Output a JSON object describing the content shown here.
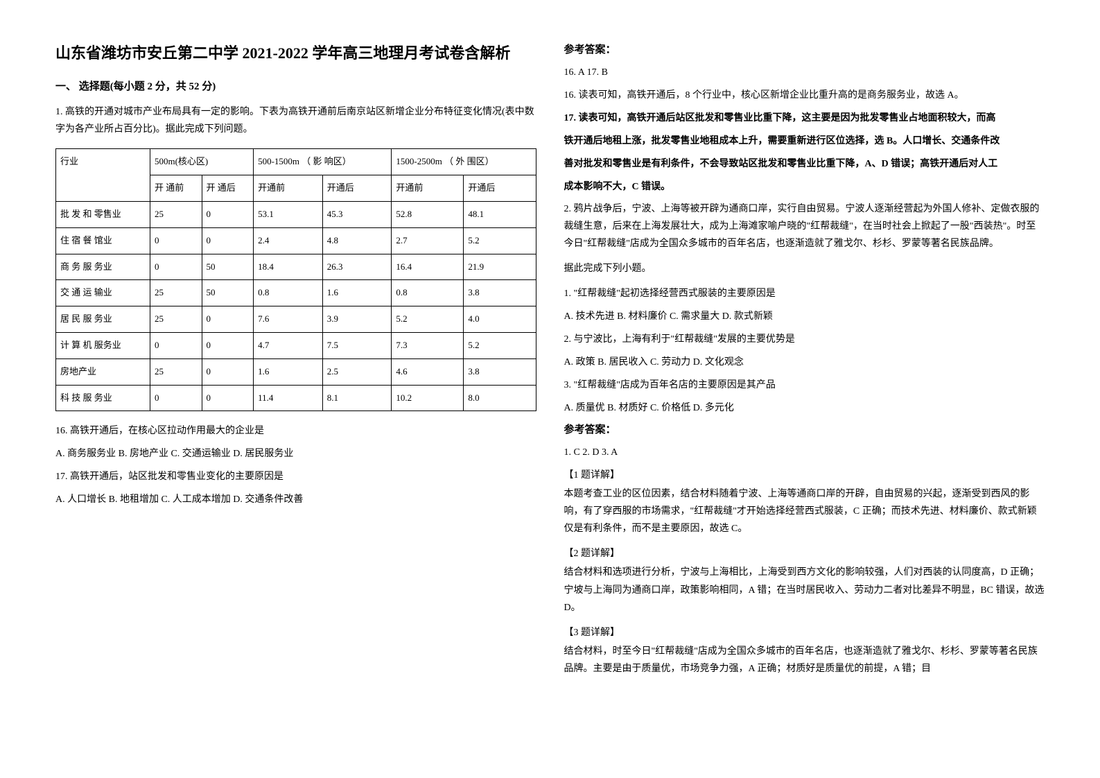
{
  "title": "山东省潍坊市安丘第二中学 2021-2022 学年高三地理月考试卷含解析",
  "section1_heading": "一、 选择题(每小题 2 分，共 52 分)",
  "q1_intro": "1. 高铁的开通对城市产业布局具有一定的影响。下表为高铁开通前后南京站区新增企业分布特征变化情况(表中数字为各产业所占百分比)。据此完成下列问题。",
  "table": {
    "header_row1": [
      "行业",
      "500m(核心区)",
      "500-1500m （ 影 响区）",
      "1500-2500m （ 外 围区）"
    ],
    "header_row2": [
      "开 通前",
      "开 通后",
      "开通前",
      "开通后",
      "开通前",
      "开通后"
    ],
    "rows": [
      [
        "批 发 和 零售业",
        "25",
        "0",
        "53.1",
        "45.3",
        "52.8",
        "48.1"
      ],
      [
        "住 宿 餐 馆业",
        "0",
        "0",
        "2.4",
        "4.8",
        "2.7",
        "5.2"
      ],
      [
        "商 务 服 务业",
        "0",
        "50",
        "18.4",
        "26.3",
        "16.4",
        "21.9"
      ],
      [
        "交 通 运 输业",
        "25",
        "50",
        "0.8",
        "1.6",
        "0.8",
        "3.8"
      ],
      [
        "居 民 服 务业",
        "25",
        "0",
        "7.6",
        "3.9",
        "5.2",
        "4.0"
      ],
      [
        "计 算 机 服务业",
        "0",
        "0",
        "4.7",
        "7.5",
        "7.3",
        "5.2"
      ],
      [
        "房地产业",
        "25",
        "0",
        "1.6",
        "2.5",
        "4.6",
        "3.8"
      ],
      [
        "科 技 服 务业",
        "0",
        "0",
        "11.4",
        "8.1",
        "10.2",
        "8.0"
      ]
    ]
  },
  "q16": "16. 高铁开通后，在核心区拉动作用最大的企业是",
  "q16_options": "A. 商务服务业      B. 房地产业      C. 交通运输业      D. 居民服务业",
  "q17": "17. 高铁开通后，站区批发和零售业变化的主要原因是",
  "q17_options": "A. 人口增长     B. 地租增加 C. 人工成本增加 D. 交通条件改善",
  "answer_heading": "参考答案：",
  "ans_16_17": "16. A     17. B",
  "ans_16_detail": "16. 读表可知，高铁开通后，8 个行业中，核心区新增企业比重升高的是商务服务业，故选 A。",
  "ans_17_detail_1": "17. 读表可知，高铁开通后站区批发和零售业比重下降，这主要是因为批发零售业占地面积较大，而高",
  "ans_17_detail_2": "铁开通后地租上涨，批发零售业地租成本上升，需要重新进行区位选择，选 B。人口增长、交通条件改",
  "ans_17_detail_3": "善对批发和零售业是有利条件，不会导致站区批发和零售业比重下降，A、D 错误；高铁开通后对人工",
  "ans_17_detail_4": "成本影响不大，C 错误。",
  "q2_p1": "2. 鸦片战争后，宁波、上海等被开辟为通商口岸，实行自由贸易。宁波人逐渐经营起为外国人修补、定做衣服的裁缝生意，后来在上海发展壮大，成为上海滩家喻户晓的\"红帮裁缝\"，在当时社会上掀起了一股\"西装热\"。时至今日\"红帮裁缝\"店成为全国众多城市的百年名店，也逐渐造就了雅戈尔、杉杉、罗蒙等著名民族品牌。",
  "q2_p2": "据此完成下列小题。",
  "q2_1": "1. \"红帮裁缝\"起初选择经营西式服装的主要原因是",
  "q2_1_opts": "A. 技术先进  B. 材料廉价  C. 需求量大  D. 款式新颖",
  "q2_2": "2. 与宁波比，上海有利于\"红帮裁缝\"发展的主要优势是",
  "q2_2_opts": "A. 政策    B. 居民收入  C. 劳动力   D. 文化观念",
  "q2_3": "3. \"红帮裁缝\"店成为百年名店的主要原因是其产品",
  "q2_3_opts": "A. 质量优   B. 材质好   C. 价格低   D. 多元化",
  "answer_heading2": "参考答案：",
  "ans2_line": "1. C     2. D     3. A",
  "detail1_h": "【1 题详解】",
  "detail1_p": "本题考查工业的区位因素，结合材料随着宁波、上海等通商口岸的开辟，自由贸易的兴起，逐渐受到西风的影响，有了穿西服的市场需求，\"红帮裁缝\"才开始选择经营西式服装，C 正确；而技术先进、材料廉价、款式新颖仅是有利条件，而不是主要原因，故选 C。",
  "detail2_h": "【2 题详解】",
  "detail2_p": "结合材料和选项进行分析，宁波与上海相比，上海受到西方文化的影响较强，人们对西装的认同度高，D 正确；宁坡与上海同为通商口岸，政策影响相同，A 错；在当时居民收入、劳动力二者对比差异不明显，BC 错误，故选 D。",
  "detail3_h": "【3 题详解】",
  "detail3_p": "结合材料，时至今日\"红帮裁缝\"店成为全国众多城市的百年名店，也逐渐造就了雅戈尔、杉杉、罗蒙等著名民族品牌。主要是由于质量优，市场竞争力强，A 正确；材质好是质量优的前提，A 错；目"
}
